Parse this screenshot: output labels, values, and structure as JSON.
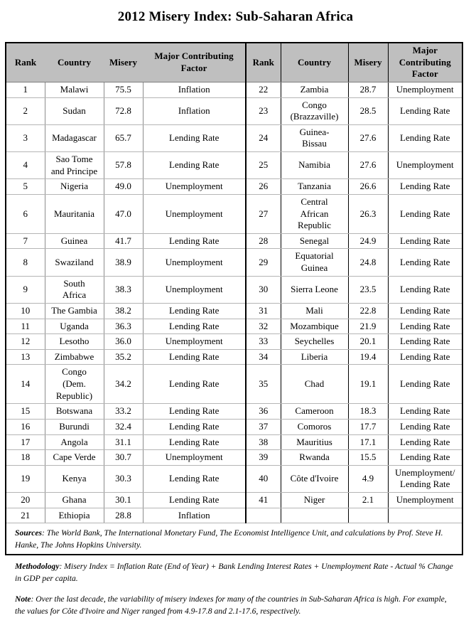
{
  "title": "2012 Misery Index: Sub-Saharan Africa",
  "table": {
    "headers": [
      "Rank",
      "Country",
      "Misery",
      "Major Contributing\nFactor",
      "Rank",
      "Country",
      "Misery",
      "Major\nContributing\nFactor"
    ],
    "rows": [
      {
        "l": [
          "1",
          "Malawi",
          "75.5",
          "Inflation"
        ],
        "r": [
          "22",
          "Zambia",
          "28.7",
          "Unemployment"
        ]
      },
      {
        "l": [
          "2",
          "Sudan",
          "72.8",
          "Inflation"
        ],
        "r": [
          "23",
          "Congo\n(Brazzaville)",
          "28.5",
          "Lending Rate"
        ]
      },
      {
        "l": [
          "3",
          "Madagascar",
          "65.7",
          "Lending Rate"
        ],
        "r": [
          "24",
          "Guinea-\nBissau",
          "27.6",
          "Lending Rate"
        ]
      },
      {
        "l": [
          "4",
          "Sao Tome\nand Principe",
          "57.8",
          "Lending Rate"
        ],
        "r": [
          "25",
          "Namibia",
          "27.6",
          "Unemployment"
        ]
      },
      {
        "l": [
          "5",
          "Nigeria",
          "49.0",
          "Unemployment"
        ],
        "r": [
          "26",
          "Tanzania",
          "26.6",
          "Lending Rate"
        ]
      },
      {
        "l": [
          "6",
          "Mauritania",
          "47.0",
          "Unemployment"
        ],
        "r": [
          "27",
          "Central\nAfrican\nRepublic",
          "26.3",
          "Lending Rate"
        ]
      },
      {
        "l": [
          "7",
          "Guinea",
          "41.7",
          "Lending Rate"
        ],
        "r": [
          "28",
          "Senegal",
          "24.9",
          "Lending Rate"
        ]
      },
      {
        "l": [
          "8",
          "Swaziland",
          "38.9",
          "Unemployment"
        ],
        "r": [
          "29",
          "Equatorial\nGuinea",
          "24.8",
          "Lending Rate"
        ]
      },
      {
        "l": [
          "9",
          "South\nAfrica",
          "38.3",
          "Unemployment"
        ],
        "r": [
          "30",
          "Sierra Leone",
          "23.5",
          "Lending Rate"
        ]
      },
      {
        "l": [
          "10",
          "The Gambia",
          "38.2",
          "Lending Rate"
        ],
        "r": [
          "31",
          "Mali",
          "22.8",
          "Lending Rate"
        ]
      },
      {
        "l": [
          "11",
          "Uganda",
          "36.3",
          "Lending Rate"
        ],
        "r": [
          "32",
          "Mozambique",
          "21.9",
          "Lending Rate"
        ]
      },
      {
        "l": [
          "12",
          "Lesotho",
          "36.0",
          "Unemployment"
        ],
        "r": [
          "33",
          "Seychelles",
          "20.1",
          "Lending Rate"
        ]
      },
      {
        "l": [
          "13",
          "Zimbabwe",
          "35.2",
          "Lending Rate"
        ],
        "r": [
          "34",
          "Liberia",
          "19.4",
          "Lending Rate"
        ]
      },
      {
        "l": [
          "14",
          "Congo\n(Dem.\nRepublic)",
          "34.2",
          "Lending Rate"
        ],
        "r": [
          "35",
          "Chad",
          "19.1",
          "Lending Rate"
        ]
      },
      {
        "l": [
          "15",
          "Botswana",
          "33.2",
          "Lending Rate"
        ],
        "r": [
          "36",
          "Cameroon",
          "18.3",
          "Lending Rate"
        ]
      },
      {
        "l": [
          "16",
          "Burundi",
          "32.4",
          "Lending Rate"
        ],
        "r": [
          "37",
          "Comoros",
          "17.7",
          "Lending Rate"
        ]
      },
      {
        "l": [
          "17",
          "Angola",
          "31.1",
          "Lending Rate"
        ],
        "r": [
          "38",
          "Mauritius",
          "17.1",
          "Lending Rate"
        ]
      },
      {
        "l": [
          "18",
          "Cape Verde",
          "30.7",
          "Unemployment"
        ],
        "r": [
          "39",
          "Rwanda",
          "15.5",
          "Lending Rate"
        ]
      },
      {
        "l": [
          "19",
          "Kenya",
          "30.3",
          "Lending Rate"
        ],
        "r": [
          "40",
          "Côte d'Ivoire",
          "4.9",
          "Unemployment/\nLending Rate"
        ]
      },
      {
        "l": [
          "20",
          "Ghana",
          "30.1",
          "Lending Rate"
        ],
        "r": [
          "41",
          "Niger",
          "2.1",
          "Unemployment"
        ]
      },
      {
        "l": [
          "21",
          "Ethiopia",
          "28.8",
          "Inflation"
        ],
        "r": [
          "",
          "",
          "",
          ""
        ]
      }
    ]
  },
  "notes": [
    {
      "label": "Sources",
      "text": ": The World Bank, The International Monetary Fund, The Economist Intelligence Unit, and calculations by Prof. Steve H. Hanke, The Johns Hopkins University."
    },
    {
      "label": "Methodology",
      "text": ":  Misery Index = Inflation Rate (End of Year) + Bank Lending Interest Rates + Unemployment Rate - Actual % Change in GDP per capita."
    },
    {
      "label": "Note",
      "text": ": Over the last decade, the variability of misery indexes for many of the countries in Sub-Saharan Africa is high. For example, the values for Côte d'Ivoire and Niger ranged from 4.9-17.8 and 2.1-17.6, respectively."
    }
  ]
}
